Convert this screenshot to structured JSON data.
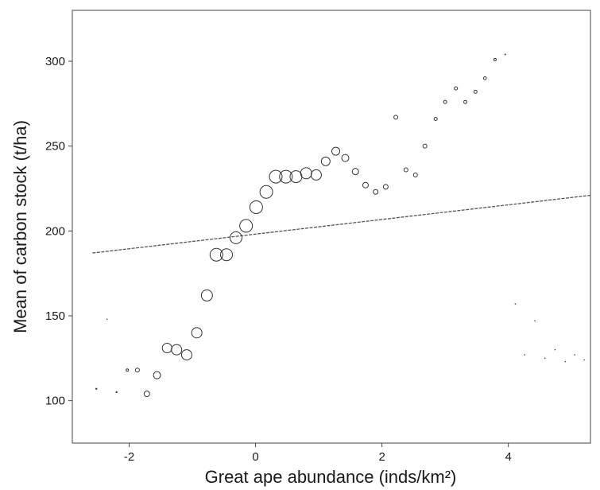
{
  "chart_data": {
    "type": "scatter",
    "title": "",
    "xlabel": "Great ape abundance (inds/km²)",
    "ylabel": "Mean of carbon stock (t/ha)",
    "xlim": [
      -2.9,
      5.3
    ],
    "ylim": [
      75,
      330
    ],
    "x_ticks": [
      -2,
      0,
      2,
      4
    ],
    "y_ticks": [
      100,
      150,
      200,
      250,
      300
    ],
    "grid": false,
    "legend": "none",
    "marker_color": "#333333",
    "trend_line": {
      "style": "dashed",
      "color": "#555555",
      "x": [
        -2.58,
        5.3
      ],
      "y": [
        187,
        221
      ]
    },
    "points": [
      {
        "x": -2.52,
        "y": 107,
        "size": 1
      },
      {
        "x": -2.35,
        "y": 148,
        "size": 0.5
      },
      {
        "x": -2.2,
        "y": 105,
        "size": 1
      },
      {
        "x": -2.03,
        "y": 118,
        "size": 1.5
      },
      {
        "x": -1.87,
        "y": 118,
        "size": 2.5
      },
      {
        "x": -1.72,
        "y": 104,
        "size": 3.5
      },
      {
        "x": -1.56,
        "y": 115,
        "size": 4.5
      },
      {
        "x": -1.4,
        "y": 131,
        "size": 6
      },
      {
        "x": -1.25,
        "y": 130,
        "size": 6.5
      },
      {
        "x": -1.09,
        "y": 127,
        "size": 6.5
      },
      {
        "x": -0.93,
        "y": 140,
        "size": 6.5
      },
      {
        "x": -0.77,
        "y": 162,
        "size": 7
      },
      {
        "x": -0.62,
        "y": 186,
        "size": 8
      },
      {
        "x": -0.46,
        "y": 186,
        "size": 7.5
      },
      {
        "x": -0.31,
        "y": 196,
        "size": 7.5
      },
      {
        "x": -0.15,
        "y": 203,
        "size": 8
      },
      {
        "x": 0.01,
        "y": 214,
        "size": 8
      },
      {
        "x": 0.17,
        "y": 223,
        "size": 8
      },
      {
        "x": 0.32,
        "y": 232,
        "size": 8
      },
      {
        "x": 0.48,
        "y": 232,
        "size": 8
      },
      {
        "x": 0.64,
        "y": 232,
        "size": 7.5
      },
      {
        "x": 0.8,
        "y": 234,
        "size": 7
      },
      {
        "x": 0.96,
        "y": 233,
        "size": 6.5
      },
      {
        "x": 1.11,
        "y": 241,
        "size": 5.5
      },
      {
        "x": 1.27,
        "y": 247,
        "size": 5
      },
      {
        "x": 1.42,
        "y": 243,
        "size": 4.5
      },
      {
        "x": 1.58,
        "y": 235,
        "size": 4
      },
      {
        "x": 1.74,
        "y": 227,
        "size": 3.5
      },
      {
        "x": 1.9,
        "y": 223,
        "size": 3
      },
      {
        "x": 2.06,
        "y": 226,
        "size": 3
      },
      {
        "x": 2.22,
        "y": 267,
        "size": 2.5
      },
      {
        "x": 2.38,
        "y": 236,
        "size": 2.5
      },
      {
        "x": 2.53,
        "y": 233,
        "size": 2.5
      },
      {
        "x": 2.68,
        "y": 250,
        "size": 2.5
      },
      {
        "x": 2.85,
        "y": 266,
        "size": 2
      },
      {
        "x": 3.0,
        "y": 276,
        "size": 2
      },
      {
        "x": 3.17,
        "y": 284,
        "size": 2
      },
      {
        "x": 3.32,
        "y": 276,
        "size": 2
      },
      {
        "x": 3.48,
        "y": 282,
        "size": 2
      },
      {
        "x": 3.63,
        "y": 290,
        "size": 1.8
      },
      {
        "x": 3.79,
        "y": 301,
        "size": 1.5
      },
      {
        "x": 3.95,
        "y": 304,
        "size": 0.8
      },
      {
        "x": 4.11,
        "y": 157,
        "size": 0.5
      },
      {
        "x": 4.26,
        "y": 127,
        "size": 0.5
      },
      {
        "x": 4.42,
        "y": 147,
        "size": 0.5
      },
      {
        "x": 4.58,
        "y": 125,
        "size": 0.5
      },
      {
        "x": 4.74,
        "y": 130,
        "size": 0.5
      },
      {
        "x": 4.9,
        "y": 123,
        "size": 0.5
      },
      {
        "x": 5.05,
        "y": 127,
        "size": 0.5
      },
      {
        "x": 5.2,
        "y": 124,
        "size": 0.5
      }
    ]
  }
}
